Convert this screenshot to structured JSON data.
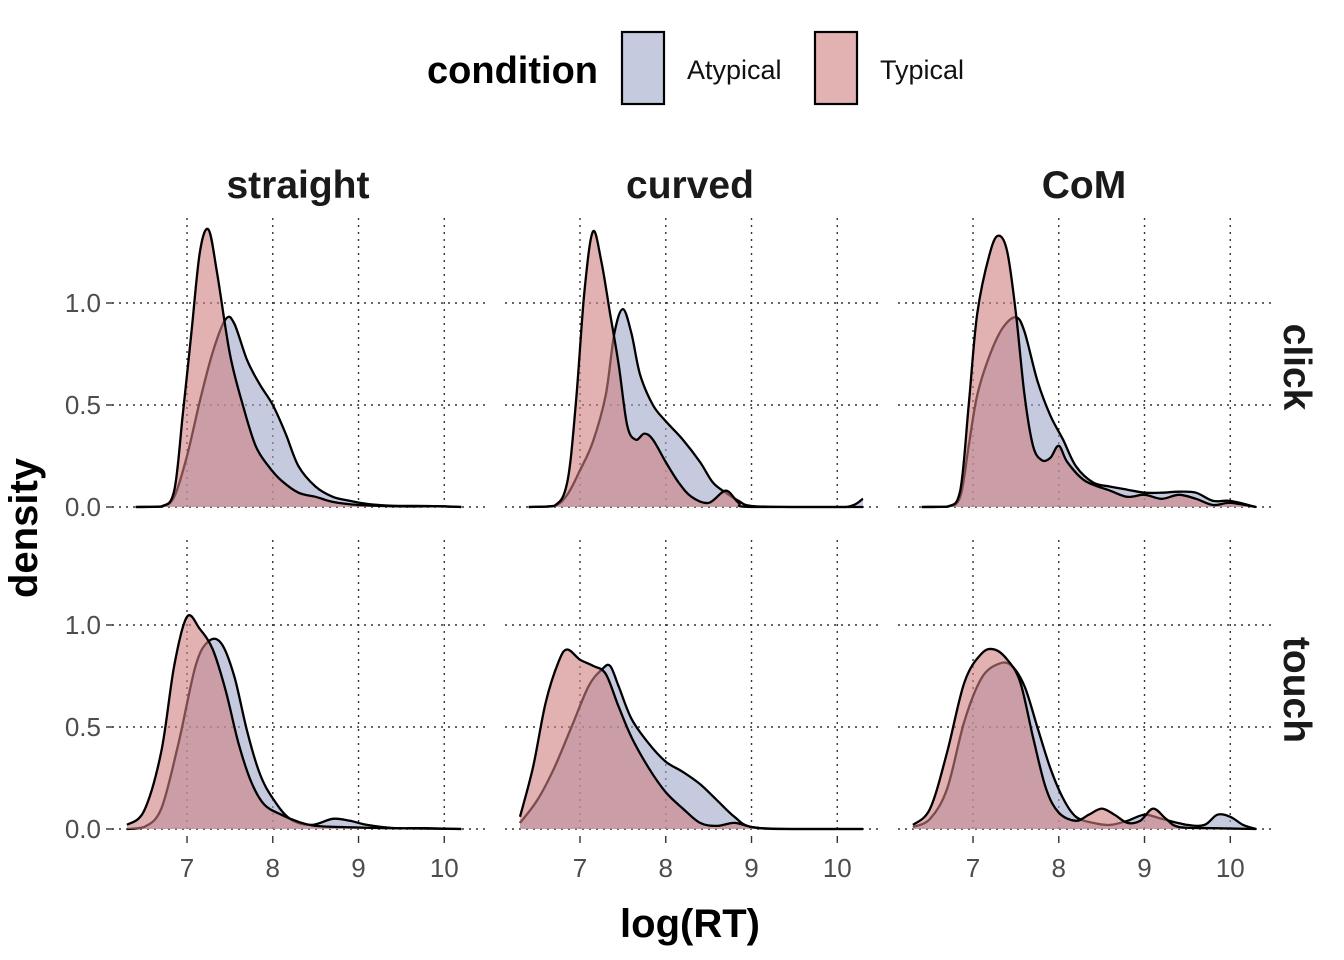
{
  "chart_data": {
    "type": "area",
    "subtype": "faceted density plot",
    "xlabel": "log(RT)",
    "ylabel": "density",
    "xlim": [
      6.3,
      10.3
    ],
    "ylim": [
      0,
      1.4
    ],
    "x_ticks": [
      7,
      8,
      9,
      10
    ],
    "y_ticks": [
      0.0,
      0.5,
      1.0
    ],
    "y_tick_labels": [
      "0.0",
      "0.5",
      "1.0"
    ],
    "grid": true,
    "legend": {
      "title": "condition",
      "position": "top",
      "items": [
        {
          "label": "Atypical",
          "color": "#9fa6c9"
        },
        {
          "label": "Typical",
          "color": "#cf7f80"
        }
      ]
    },
    "facet_cols": [
      "straight",
      "curved",
      "CoM"
    ],
    "facet_rows": [
      "click",
      "touch"
    ],
    "series_colors": {
      "Atypical": "#9fa6c9",
      "Typical": "#cf7f80",
      "fill_opacity": 0.6,
      "outline": "#000000"
    },
    "panels": [
      {
        "col": "straight",
        "row": "click",
        "Atypical": [
          [
            6.4,
            0
          ],
          [
            6.7,
            0.002
          ],
          [
            6.85,
            0.05
          ],
          [
            7.0,
            0.25
          ],
          [
            7.15,
            0.52
          ],
          [
            7.3,
            0.76
          ],
          [
            7.45,
            0.92
          ],
          [
            7.55,
            0.9
          ],
          [
            7.7,
            0.72
          ],
          [
            7.85,
            0.6
          ],
          [
            8.0,
            0.5
          ],
          [
            8.15,
            0.36
          ],
          [
            8.3,
            0.2
          ],
          [
            8.5,
            0.1
          ],
          [
            8.7,
            0.05
          ],
          [
            8.9,
            0.03
          ],
          [
            9.1,
            0.015
          ],
          [
            9.4,
            0.006
          ],
          [
            9.8,
            0.005
          ],
          [
            10.2,
            0
          ]
        ],
        "Typical": [
          [
            6.4,
            0
          ],
          [
            6.7,
            0.003
          ],
          [
            6.85,
            0.08
          ],
          [
            6.95,
            0.45
          ],
          [
            7.05,
            0.85
          ],
          [
            7.15,
            1.25
          ],
          [
            7.25,
            1.36
          ],
          [
            7.35,
            1.15
          ],
          [
            7.5,
            0.75
          ],
          [
            7.65,
            0.5
          ],
          [
            7.8,
            0.3
          ],
          [
            7.95,
            0.2
          ],
          [
            8.1,
            0.13
          ],
          [
            8.3,
            0.07
          ],
          [
            8.5,
            0.05
          ],
          [
            8.7,
            0.025
          ],
          [
            9.0,
            0.01
          ],
          [
            9.5,
            0.003
          ],
          [
            9.9,
            0.004
          ],
          [
            10.2,
            0
          ]
        ]
      },
      {
        "col": "curved",
        "row": "click",
        "Atypical": [
          [
            6.4,
            0
          ],
          [
            6.7,
            0.005
          ],
          [
            6.85,
            0.06
          ],
          [
            7.0,
            0.18
          ],
          [
            7.15,
            0.32
          ],
          [
            7.3,
            0.55
          ],
          [
            7.4,
            0.85
          ],
          [
            7.5,
            0.97
          ],
          [
            7.6,
            0.85
          ],
          [
            7.7,
            0.65
          ],
          [
            7.85,
            0.5
          ],
          [
            8.0,
            0.42
          ],
          [
            8.2,
            0.33
          ],
          [
            8.4,
            0.22
          ],
          [
            8.55,
            0.12
          ],
          [
            8.7,
            0.07
          ],
          [
            8.85,
            0.03
          ],
          [
            9.0,
            0.005
          ],
          [
            9.5,
            0
          ],
          [
            10.1,
            0
          ],
          [
            10.3,
            0.04
          ]
        ],
        "Typical": [
          [
            6.4,
            0
          ],
          [
            6.7,
            0.006
          ],
          [
            6.85,
            0.12
          ],
          [
            6.95,
            0.5
          ],
          [
            7.05,
            1.05
          ],
          [
            7.15,
            1.35
          ],
          [
            7.25,
            1.2
          ],
          [
            7.35,
            0.95
          ],
          [
            7.45,
            0.7
          ],
          [
            7.55,
            0.4
          ],
          [
            7.65,
            0.33
          ],
          [
            7.75,
            0.36
          ],
          [
            7.85,
            0.33
          ],
          [
            8.0,
            0.22
          ],
          [
            8.15,
            0.12
          ],
          [
            8.3,
            0.05
          ],
          [
            8.5,
            0.02
          ],
          [
            8.7,
            0.08
          ],
          [
            8.85,
            0.02
          ],
          [
            9.0,
            0
          ],
          [
            10.3,
            0
          ]
        ]
      },
      {
        "col": "CoM",
        "row": "click",
        "Atypical": [
          [
            6.4,
            0
          ],
          [
            6.7,
            0.002
          ],
          [
            6.85,
            0.05
          ],
          [
            6.95,
            0.3
          ],
          [
            7.05,
            0.55
          ],
          [
            7.2,
            0.75
          ],
          [
            7.35,
            0.88
          ],
          [
            7.5,
            0.93
          ],
          [
            7.6,
            0.86
          ],
          [
            7.75,
            0.62
          ],
          [
            7.9,
            0.45
          ],
          [
            8.05,
            0.33
          ],
          [
            8.2,
            0.2
          ],
          [
            8.4,
            0.12
          ],
          [
            8.6,
            0.1
          ],
          [
            8.8,
            0.085
          ],
          [
            9.0,
            0.07
          ],
          [
            9.2,
            0.07
          ],
          [
            9.4,
            0.075
          ],
          [
            9.6,
            0.07
          ],
          [
            9.8,
            0.03
          ],
          [
            10.0,
            0.03
          ],
          [
            10.3,
            0
          ]
        ],
        "Typical": [
          [
            6.4,
            0
          ],
          [
            6.7,
            0.002
          ],
          [
            6.85,
            0.08
          ],
          [
            6.95,
            0.5
          ],
          [
            7.05,
            0.95
          ],
          [
            7.2,
            1.25
          ],
          [
            7.3,
            1.33
          ],
          [
            7.4,
            1.25
          ],
          [
            7.5,
            0.95
          ],
          [
            7.6,
            0.55
          ],
          [
            7.7,
            0.3
          ],
          [
            7.8,
            0.23
          ],
          [
            7.9,
            0.24
          ],
          [
            8.0,
            0.3
          ],
          [
            8.1,
            0.22
          ],
          [
            8.3,
            0.13
          ],
          [
            8.6,
            0.08
          ],
          [
            8.8,
            0.05
          ],
          [
            9.0,
            0.06
          ],
          [
            9.2,
            0.04
          ],
          [
            9.4,
            0.06
          ],
          [
            9.6,
            0.04
          ],
          [
            9.8,
            0.01
          ],
          [
            10.0,
            0.02
          ],
          [
            10.3,
            0
          ]
        ]
      },
      {
        "col": "straight",
        "row": "touch",
        "Atypical": [
          [
            6.3,
            0
          ],
          [
            6.5,
            0.01
          ],
          [
            6.7,
            0.1
          ],
          [
            6.9,
            0.42
          ],
          [
            7.1,
            0.8
          ],
          [
            7.25,
            0.92
          ],
          [
            7.4,
            0.91
          ],
          [
            7.55,
            0.75
          ],
          [
            7.7,
            0.48
          ],
          [
            7.85,
            0.27
          ],
          [
            8.0,
            0.15
          ],
          [
            8.2,
            0.05
          ],
          [
            8.45,
            0.02
          ],
          [
            8.7,
            0.05
          ],
          [
            8.9,
            0.04
          ],
          [
            9.1,
            0.02
          ],
          [
            9.4,
            0.005
          ],
          [
            9.8,
            0.004
          ],
          [
            10.2,
            0
          ]
        ],
        "Typical": [
          [
            6.3,
            0.02
          ],
          [
            6.5,
            0.09
          ],
          [
            6.7,
            0.38
          ],
          [
            6.85,
            0.8
          ],
          [
            7.0,
            1.04
          ],
          [
            7.15,
            0.98
          ],
          [
            7.3,
            0.88
          ],
          [
            7.45,
            0.68
          ],
          [
            7.6,
            0.42
          ],
          [
            7.75,
            0.23
          ],
          [
            7.9,
            0.12
          ],
          [
            8.1,
            0.07
          ],
          [
            8.3,
            0.035
          ],
          [
            8.5,
            0.015
          ],
          [
            8.8,
            0.01
          ],
          [
            9.2,
            0.005
          ],
          [
            10.2,
            0
          ]
        ]
      },
      {
        "col": "curved",
        "row": "touch",
        "Atypical": [
          [
            6.3,
            0.03
          ],
          [
            6.5,
            0.14
          ],
          [
            6.7,
            0.3
          ],
          [
            6.9,
            0.5
          ],
          [
            7.1,
            0.7
          ],
          [
            7.25,
            0.78
          ],
          [
            7.35,
            0.8
          ],
          [
            7.45,
            0.7
          ],
          [
            7.6,
            0.54
          ],
          [
            7.8,
            0.42
          ],
          [
            8.0,
            0.33
          ],
          [
            8.2,
            0.28
          ],
          [
            8.4,
            0.22
          ],
          [
            8.6,
            0.14
          ],
          [
            8.8,
            0.06
          ],
          [
            9.0,
            0.01
          ],
          [
            9.5,
            0
          ],
          [
            10.3,
            0
          ]
        ],
        "Typical": [
          [
            6.3,
            0.06
          ],
          [
            6.45,
            0.3
          ],
          [
            6.6,
            0.62
          ],
          [
            6.75,
            0.82
          ],
          [
            6.85,
            0.88
          ],
          [
            7.0,
            0.83
          ],
          [
            7.15,
            0.8
          ],
          [
            7.3,
            0.76
          ],
          [
            7.45,
            0.6
          ],
          [
            7.6,
            0.45
          ],
          [
            7.8,
            0.3
          ],
          [
            8.0,
            0.18
          ],
          [
            8.2,
            0.1
          ],
          [
            8.4,
            0.03
          ],
          [
            8.6,
            0.015
          ],
          [
            8.8,
            0.03
          ],
          [
            9.0,
            0.01
          ],
          [
            9.3,
            0
          ],
          [
            10.3,
            0
          ]
        ]
      },
      {
        "col": "CoM",
        "row": "touch",
        "Atypical": [
          [
            6.3,
            0.01
          ],
          [
            6.5,
            0.05
          ],
          [
            6.7,
            0.2
          ],
          [
            6.9,
            0.53
          ],
          [
            7.1,
            0.74
          ],
          [
            7.3,
            0.81
          ],
          [
            7.45,
            0.8
          ],
          [
            7.6,
            0.7
          ],
          [
            7.75,
            0.5
          ],
          [
            7.9,
            0.3
          ],
          [
            8.05,
            0.15
          ],
          [
            8.2,
            0.06
          ],
          [
            8.4,
            0.03
          ],
          [
            8.6,
            0.02
          ],
          [
            8.8,
            0.04
          ],
          [
            9.0,
            0.07
          ],
          [
            9.2,
            0.05
          ],
          [
            9.5,
            0.02
          ],
          [
            9.7,
            0.02
          ],
          [
            9.85,
            0.07
          ],
          [
            10.0,
            0.06
          ],
          [
            10.15,
            0.02
          ],
          [
            10.3,
            0
          ]
        ],
        "Typical": [
          [
            6.3,
            0.02
          ],
          [
            6.5,
            0.1
          ],
          [
            6.7,
            0.38
          ],
          [
            6.9,
            0.72
          ],
          [
            7.1,
            0.86
          ],
          [
            7.25,
            0.88
          ],
          [
            7.4,
            0.83
          ],
          [
            7.55,
            0.72
          ],
          [
            7.7,
            0.45
          ],
          [
            7.85,
            0.2
          ],
          [
            8.0,
            0.08
          ],
          [
            8.2,
            0.04
          ],
          [
            8.35,
            0.07
          ],
          [
            8.5,
            0.1
          ],
          [
            8.65,
            0.07
          ],
          [
            8.8,
            0.03
          ],
          [
            8.95,
            0.04
          ],
          [
            9.1,
            0.1
          ],
          [
            9.25,
            0.05
          ],
          [
            9.4,
            0.01
          ],
          [
            9.8,
            0.004
          ],
          [
            10.3,
            0
          ]
        ]
      }
    ]
  }
}
